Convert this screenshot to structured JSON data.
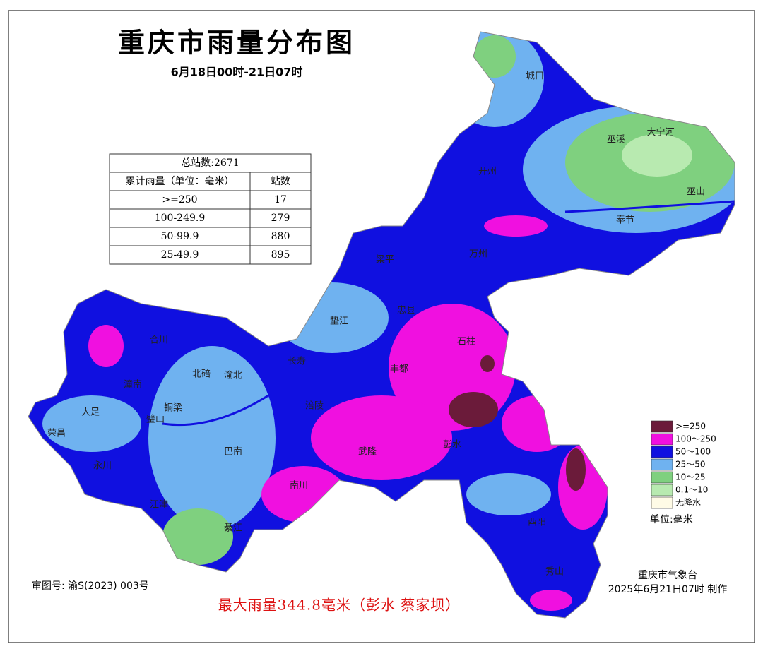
{
  "header": {
    "title": "重庆市雨量分布图",
    "subtitle": "6月18日00时-21日07时"
  },
  "table": {
    "title": "总站数:2671",
    "columns": [
      "累计雨量（单位：毫米）",
      "站数"
    ],
    "rows": [
      [
        ">=250",
        "17"
      ],
      [
        "100-249.9",
        "279"
      ],
      [
        "50-99.9",
        "880"
      ],
      [
        "25-49.9",
        "895"
      ]
    ]
  },
  "legend": {
    "items": [
      {
        "label": ">=250",
        "color": "#6b1b3a"
      },
      {
        "label": "100～250",
        "color": "#f010e0"
      },
      {
        "label": "50～100",
        "color": "#1010e0"
      },
      {
        "label": "25～50",
        "color": "#6fb2f0"
      },
      {
        "label": "10～25",
        "color": "#7fd07f"
      },
      {
        "label": "0.1～10",
        "color": "#b8eab0"
      },
      {
        "label": "无降水",
        "color": "#fffbe6"
      }
    ],
    "unit": "单位:毫米"
  },
  "place_names": [
    "城口",
    "巫溪",
    "大宁河",
    "巫山",
    "奉节",
    "开州",
    "万州",
    "梁平",
    "忠县",
    "垫江",
    "石柱",
    "长寿",
    "丰都",
    "北碚",
    "渝北",
    "合川",
    "潼南",
    "铜梁",
    "大足",
    "荣昌",
    "璧山",
    "永川",
    "江津",
    "巴南",
    "綦江",
    "南川",
    "涪陵",
    "武隆",
    "彭水",
    "酉阳",
    "秀山"
  ],
  "footer": {
    "approval": "审图号: 渝S(2023) 003号",
    "max_rain": "最大雨量344.8毫米（彭水 蔡家坝）",
    "agency": "重庆市气象台",
    "made": "2025年6月21日07时 制作"
  }
}
